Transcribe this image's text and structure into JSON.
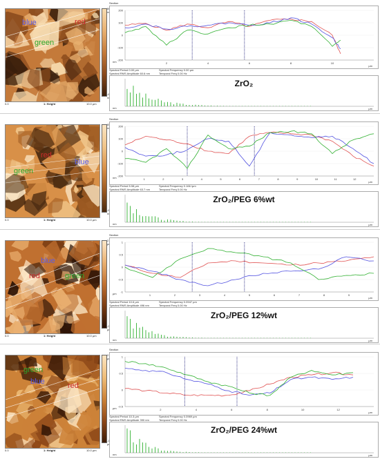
{
  "panels": [
    {
      "caption": "ZrO₂",
      "colorbar_top": "662.1 nm",
      "colorbar_bottom": "-662.1 nm",
      "img_foot_left": "0.0",
      "img_foot_mid": "1: Height",
      "img_foot_right": "10.0 µm",
      "labels": {
        "blue": "blue",
        "red": "red",
        "green": "green"
      },
      "section_title": "Section",
      "stats": [
        "Spectral Period 0.00 µm",
        "Spectral Frequency 0.00 µm",
        "Spectral RMS Amplitude 60.6 nm",
        "Temporal Freq 0.00 Hz"
      ],
      "y_unit": "nm",
      "x_unit": "µm",
      "spec_unit": "nm"
    },
    {
      "caption": "ZrO₂/PEG 6%wt",
      "colorbar_top": "656.7 nm",
      "colorbar_bottom": "-657.6 nm",
      "img_foot_left": "0.0",
      "img_foot_mid": "1: Height",
      "img_foot_right": "10.0 µm",
      "labels": {
        "blue": "blue",
        "red": "red",
        "green": "green"
      },
      "section_title": "Section",
      "stats": [
        "Spectral Period 5.98 µm",
        "Spectral Frequency 0.166 /µm",
        "Spectral RMS Amplitude 63.7 nm",
        "Temporal Freq 0.00 Hz"
      ],
      "y_unit": "nm",
      "x_unit": "µm",
      "spec_unit": "nm"
    },
    {
      "caption": "ZrO₂/PEG 12%wt",
      "colorbar_top": "2.2 µm",
      "colorbar_bottom": "-2.1 µm",
      "img_foot_left": "0.0",
      "img_foot_mid": "1: Height",
      "img_foot_right": "10.0 µm",
      "labels": {
        "blue": "blue",
        "red": "red",
        "green": "green"
      },
      "section_title": "Section",
      "stats": [
        "Spectral Period 10.6 µm",
        "Spectral Frequency 0.0947 µm",
        "Spectral RMS Amplitude 496 nm",
        "Temporal Freq 0.00 Hz"
      ],
      "y_unit": "µm",
      "x_unit": "µm",
      "spec_unit": "nm"
    },
    {
      "caption": "ZrO₂/PEG 24%wt",
      "colorbar_top": "2.6 µm",
      "colorbar_bottom": "-1.5 µm",
      "img_foot_left": "0.0",
      "img_foot_mid": "1: Height",
      "img_foot_right": "10.0 µm",
      "labels": {
        "blue": "blue",
        "red": "red",
        "green": "green"
      },
      "section_title": "Section",
      "stats": [
        "Spectral Period 10.3 µm",
        "Spectral Frequency 0.0969 µm",
        "Spectral RMS Amplitude 390 nm",
        "Temporal Freq 0.00 Hz"
      ],
      "y_unit": "µm",
      "x_unit": "µm",
      "spec_unit": "nm"
    }
  ],
  "colors": {
    "red": "#e05050",
    "blue": "#5050e0",
    "green": "#30b030",
    "cursor": "#3a3a8a"
  },
  "chart_data": [
    {
      "type": "line",
      "x": [
        0,
        1,
        2,
        3,
        4,
        5,
        6,
        7,
        8,
        9,
        10,
        10.4
      ],
      "xlim": [
        0,
        12
      ],
      "ylim": [
        -200,
        200
      ],
      "x_ticks": [
        "2",
        "4",
        "6",
        "8",
        "10"
      ],
      "y_ticks": [
        "200",
        "100",
        "0",
        "-100",
        "-200"
      ],
      "series": [
        {
          "name": "red",
          "values": [
            80,
            95,
            40,
            90,
            60,
            110,
            70,
            120,
            130,
            110,
            0,
            -150
          ]
        },
        {
          "name": "blue",
          "values": [
            60,
            90,
            50,
            70,
            80,
            100,
            80,
            100,
            140,
            90,
            -20,
            -110
          ]
        },
        {
          "name": "green",
          "values": [
            20,
            70,
            -80,
            40,
            10,
            60,
            80,
            90,
            120,
            70,
            -90,
            -40
          ]
        }
      ]
    },
    {
      "type": "line",
      "x": [
        0,
        1,
        2,
        3,
        4,
        5,
        6,
        7,
        8,
        9,
        10,
        11,
        12
      ],
      "xlim": [
        0,
        12
      ],
      "ylim": [
        -200,
        200
      ],
      "x_ticks": [
        "1",
        "2",
        "3",
        "4",
        "5",
        "6",
        "7",
        "8",
        "9",
        "10",
        "11",
        "12"
      ],
      "y_ticks": [
        "200",
        "100",
        "0",
        "-100",
        "-200"
      ],
      "series": [
        {
          "name": "red",
          "values": [
            50,
            120,
            90,
            60,
            0,
            -20,
            120,
            150,
            140,
            130,
            80,
            -40,
            -120
          ]
        },
        {
          "name": "blue",
          "values": [
            30,
            -40,
            -30,
            10,
            100,
            80,
            -120,
            150,
            130,
            110,
            120,
            20,
            -100
          ]
        },
        {
          "name": "green",
          "values": [
            -60,
            -90,
            20,
            -140,
            130,
            20,
            40,
            150,
            160,
            140,
            -20,
            90,
            140
          ]
        }
      ]
    },
    {
      "type": "line",
      "x": [
        0,
        1,
        2,
        3,
        4,
        5,
        6,
        7,
        8,
        9
      ],
      "xlim": [
        0,
        9
      ],
      "ylim": [
        -1.2,
        1.2
      ],
      "x_ticks": [
        "1",
        "2",
        "3",
        "4",
        "5",
        "6",
        "7",
        "8",
        "9"
      ],
      "y_ticks": [
        "1",
        "0.5",
        "0",
        "-0.5",
        "-1"
      ],
      "series": [
        {
          "name": "red",
          "values": [
            0.1,
            -0.3,
            -0.5,
            0.2,
            0.3,
            0.2,
            0.1,
            0.2,
            0.3,
            0.5
          ]
        },
        {
          "name": "blue",
          "values": [
            0.1,
            -0.2,
            -0.6,
            -0.9,
            -0.6,
            -0.3,
            -0.2,
            -0.1,
            0.5,
            0.3
          ]
        },
        {
          "name": "green",
          "values": [
            0.0,
            -0.5,
            0.4,
            0.9,
            0.7,
            0.5,
            0.2,
            -0.6,
            -0.4,
            -0.3
          ]
        }
      ]
    },
    {
      "type": "line",
      "x": [
        0,
        1,
        2,
        3,
        4,
        5,
        6,
        7,
        8,
        9,
        10,
        11
      ],
      "xlim": [
        0,
        12
      ],
      "ylim": [
        -1.0,
        1.2
      ],
      "x_ticks": [
        "2",
        "4",
        "6",
        "8",
        "10",
        "12"
      ],
      "y_ticks": [
        "1",
        "0.5",
        "0",
        "-0.5"
      ],
      "series": [
        {
          "name": "red",
          "values": [
            -0.2,
            -0.3,
            -0.4,
            -0.5,
            -0.5,
            -0.5,
            -0.3,
            0.0,
            0.3,
            0.4,
            0.5,
            0.4
          ]
        },
        {
          "name": "blue",
          "values": [
            0.7,
            0.6,
            0.5,
            0.2,
            0.0,
            -0.3,
            -0.5,
            -0.4,
            0.2,
            0.3,
            0.2,
            0.3
          ]
        },
        {
          "name": "green",
          "values": [
            1.0,
            0.9,
            0.7,
            0.4,
            0.1,
            -0.1,
            -0.4,
            -0.5,
            0.3,
            0.6,
            0.4,
            0.5
          ]
        }
      ]
    }
  ]
}
